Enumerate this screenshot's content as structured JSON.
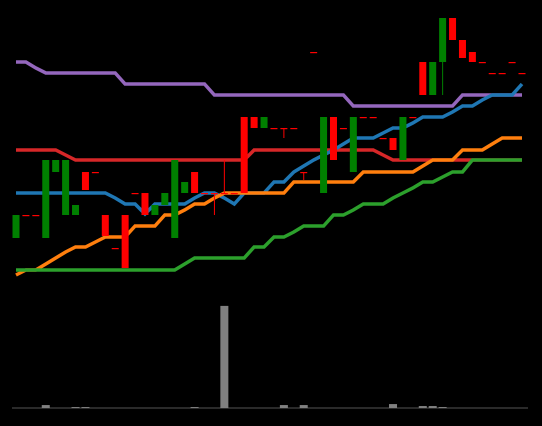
{
  "chart_data": {
    "type": "candlestick",
    "categories": [
      null,
      null,
      null,
      null,
      null,
      null,
      null,
      null,
      null,
      null,
      null,
      null,
      null,
      null,
      null,
      null,
      null,
      null,
      null,
      null,
      null,
      null,
      null,
      null,
      null,
      null,
      null,
      null,
      null,
      null,
      null,
      null,
      null,
      null,
      null,
      null,
      null,
      null,
      null,
      null,
      null,
      null,
      null,
      null,
      null,
      null,
      null,
      null,
      null,
      null,
      null,
      null
    ],
    "ylim": [
      0,
      290
    ],
    "up_color": "#008000",
    "down_color": "#ff0000",
    "open": [
      52,
      75,
      75,
      52,
      118,
      75,
      75,
      118,
      118,
      75,
      42,
      75,
      97,
      97,
      75,
      85,
      52,
      97,
      118,
      97,
      97,
      97,
      97,
      173,
      173,
      162,
      162,
      162,
      162,
      118,
      238,
      97,
      173,
      162,
      118,
      173,
      173,
      152,
      152,
      130,
      173,
      228,
      195,
      228,
      272,
      250,
      238,
      228,
      217,
      217,
      228,
      217
    ],
    "high": [
      75,
      75,
      75,
      130,
      130,
      130,
      85,
      118,
      118,
      75,
      42,
      75,
      97,
      97,
      85,
      97,
      130,
      108,
      118,
      97,
      97,
      130,
      97,
      173,
      173,
      173,
      162,
      162,
      162,
      118,
      238,
      173,
      173,
      162,
      173,
      173,
      173,
      152,
      152,
      173,
      173,
      228,
      228,
      272,
      272,
      250,
      238,
      228,
      217,
      217,
      228,
      217
    ],
    "low": [
      52,
      75,
      75,
      52,
      118,
      75,
      75,
      100,
      118,
      54,
      42,
      22,
      97,
      75,
      75,
      85,
      52,
      97,
      97,
      97,
      75,
      97,
      97,
      97,
      162,
      162,
      162,
      152,
      162,
      110,
      238,
      97,
      130,
      162,
      118,
      173,
      173,
      152,
      140,
      130,
      173,
      195,
      195,
      195,
      250,
      232,
      228,
      228,
      217,
      217,
      228,
      217
    ],
    "close": [
      75,
      75,
      75,
      130,
      130,
      130,
      85,
      100,
      118,
      54,
      42,
      22,
      97,
      75,
      85,
      97,
      130,
      108,
      97,
      97,
      96,
      97,
      97,
      97,
      162,
      173,
      162,
      162,
      162,
      118,
      238,
      173,
      130,
      162,
      173,
      173,
      173,
      152,
      140,
      173,
      173,
      195,
      228,
      272,
      250,
      232,
      228,
      228,
      217,
      217,
      228,
      217
    ],
    "overlays": [
      {
        "color": "#9467bd",
        "values": [
          228,
          228,
          222,
          217,
          217,
          217,
          217,
          217,
          217,
          217,
          217,
          206,
          206,
          206,
          206,
          206,
          206,
          206,
          206,
          206,
          195,
          195,
          195,
          195,
          195,
          195,
          195,
          195,
          195,
          195,
          195,
          195,
          195,
          195,
          184,
          184,
          184,
          184,
          184,
          184,
          184,
          184,
          184,
          184,
          184,
          195,
          195,
          195,
          195,
          195,
          195,
          195
        ]
      },
      {
        "color": "#d62728",
        "values": [
          140,
          140,
          140,
          140,
          140,
          135,
          130,
          130,
          130,
          130,
          130,
          130,
          130,
          130,
          130,
          130,
          130,
          130,
          130,
          130,
          130,
          130,
          130,
          130,
          140,
          140,
          140,
          140,
          140,
          140,
          140,
          140,
          140,
          140,
          140,
          140,
          140,
          135,
          130,
          130,
          130,
          130,
          130,
          130,
          130,
          130,
          130,
          130,
          130,
          130,
          130,
          130
        ]
      },
      {
        "color": "#1f77b4",
        "values": [
          97,
          97,
          97,
          97,
          97,
          97,
          97,
          97,
          97,
          97,
          92,
          86,
          86,
          76,
          86,
          86,
          86,
          86,
          92,
          97,
          97,
          92,
          86,
          97,
          97,
          97,
          108,
          108,
          118,
          124,
          130,
          135,
          140,
          146,
          152,
          152,
          152,
          157,
          162,
          162,
          167,
          173,
          173,
          173,
          178,
          184,
          184,
          190,
          195,
          195,
          195,
          206
        ]
      },
      {
        "color": "#ff7f0e",
        "values": [
          15,
          20,
          20,
          26,
          32,
          38,
          43,
          43,
          48,
          53,
          53,
          53,
          64,
          64,
          64,
          75,
          75,
          80,
          86,
          86,
          92,
          97,
          97,
          97,
          97,
          97,
          97,
          97,
          108,
          108,
          108,
          108,
          108,
          108,
          108,
          118,
          118,
          118,
          118,
          118,
          118,
          124,
          130,
          130,
          130,
          140,
          140,
          140,
          146,
          152,
          152,
          152
        ]
      },
      {
        "color": "#2ca02c",
        "values": [
          20,
          20,
          20,
          20,
          20,
          20,
          20,
          20,
          20,
          20,
          20,
          20,
          20,
          20,
          20,
          20,
          20,
          26,
          32,
          32,
          32,
          32,
          32,
          32,
          43,
          43,
          53,
          53,
          58,
          64,
          64,
          64,
          75,
          75,
          80,
          86,
          86,
          86,
          92,
          97,
          102,
          108,
          108,
          113,
          118,
          118,
          130,
          130,
          130,
          130,
          130,
          130
        ]
      }
    ],
    "volume": {
      "color": "#808080",
      "ylim": [
        0,
        110
      ],
      "values": [
        0,
        0,
        0,
        3,
        0,
        0,
        1,
        1,
        0,
        0,
        0,
        0,
        0,
        0,
        0,
        0,
        0,
        0,
        1,
        0,
        0,
        104,
        0,
        0,
        0,
        0,
        0,
        3,
        0,
        3,
        0,
        0,
        0,
        0,
        0,
        0,
        0,
        0,
        4,
        0,
        0,
        2,
        2,
        1,
        0,
        0,
        0,
        0,
        0,
        0,
        0,
        0
      ]
    }
  }
}
